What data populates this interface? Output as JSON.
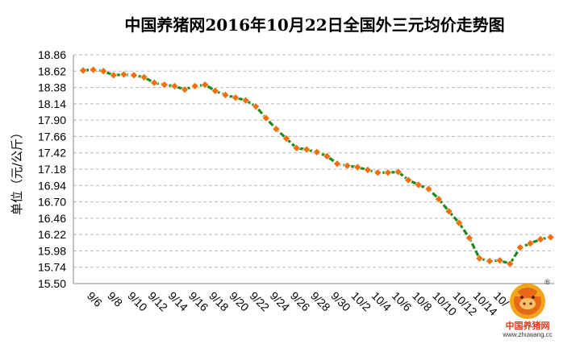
{
  "chart_data": {
    "type": "line",
    "title": "中国养猪网2016年10月22日全国外三元均价走势图",
    "ylabel": "单位（元/公斤）",
    "xlabel": "",
    "ylim": [
      15.5,
      18.86
    ],
    "yticks": [
      "18.86",
      "18.62",
      "18.38",
      "18.14",
      "17.90",
      "17.66",
      "17.42",
      "17.18",
      "16.94",
      "16.70",
      "16.46",
      "16.22",
      "15.98",
      "15.74",
      "15.50"
    ],
    "xticks": [
      "9/6",
      "9/8",
      "9/10",
      "9/12",
      "9/14",
      "9/16",
      "9/18",
      "9/20",
      "9/22",
      "9/24",
      "9/26",
      "9/28",
      "9/30",
      "10/2",
      "10/4",
      "10/6",
      "10/8",
      "10/10",
      "10/12",
      "10/14",
      "10/"
    ],
    "grid": "horizontal",
    "line_color": "#1a8a1a",
    "marker_color": "#f07010",
    "values": [
      18.63,
      18.64,
      18.62,
      18.56,
      18.57,
      18.56,
      18.53,
      18.45,
      18.42,
      18.4,
      18.35,
      18.4,
      18.42,
      18.33,
      18.27,
      18.23,
      18.19,
      18.1,
      17.93,
      17.77,
      17.63,
      17.49,
      17.47,
      17.43,
      17.37,
      17.26,
      17.23,
      17.21,
      17.17,
      17.13,
      17.13,
      17.14,
      17.02,
      16.95,
      16.89,
      16.74,
      16.56,
      16.39,
      16.17,
      15.87,
      15.83,
      15.84,
      15.79,
      16.03,
      16.09,
      16.15,
      16.18
    ]
  },
  "logo": {
    "brand": "中国养猪网",
    "url": "www.zhuwang.cc",
    "registered": "®"
  }
}
